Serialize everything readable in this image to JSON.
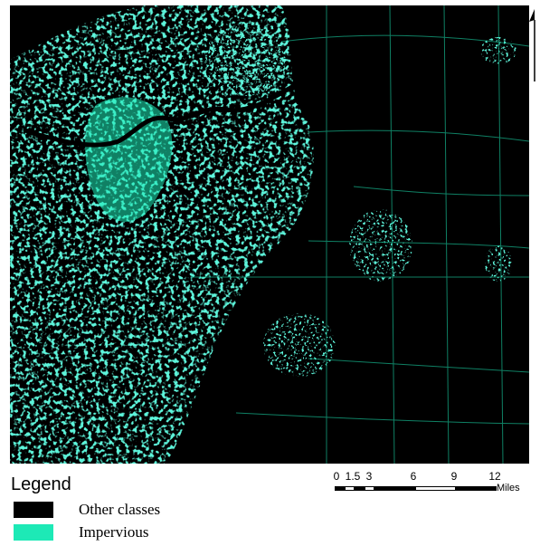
{
  "legend": {
    "title": "Legend",
    "items": [
      {
        "label": "Other classes",
        "color": "#000000"
      },
      {
        "label": "Impervious",
        "color": "#1de9b6"
      }
    ]
  },
  "scale_bar": {
    "ticks": [
      "0",
      "1.5",
      "3",
      "6",
      "9",
      "12"
    ],
    "tick_values": [
      0,
      1.5,
      3,
      6,
      9,
      12
    ],
    "unit": "Miles"
  },
  "map": {
    "background_color": "#000000",
    "impervious_color": "#1de9b6"
  }
}
